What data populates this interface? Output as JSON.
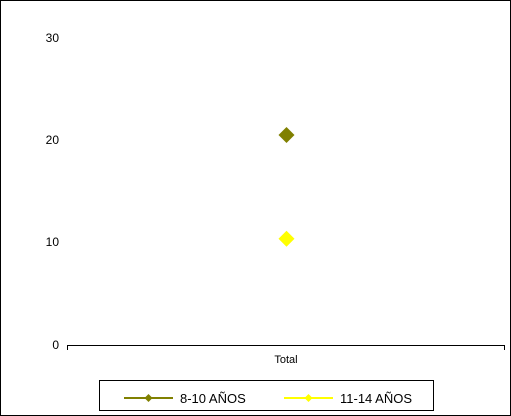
{
  "chart_data": {
    "type": "scatter",
    "title": "",
    "xlabel": "",
    "ylabel": "",
    "categories": [
      "Total"
    ],
    "ylim": [
      0,
      30
    ],
    "yticks": [
      "0",
      "10",
      "20",
      "30"
    ],
    "grid": false,
    "legend_position": "bottom",
    "series": [
      {
        "name": "8-10 AÑOS",
        "values": [
          20.5
        ],
        "color": "#808000",
        "marker": "diamond"
      },
      {
        "name": "11-14 AÑOS",
        "values": [
          10.4
        ],
        "color": "#ffff00",
        "marker": "diamond"
      }
    ]
  }
}
